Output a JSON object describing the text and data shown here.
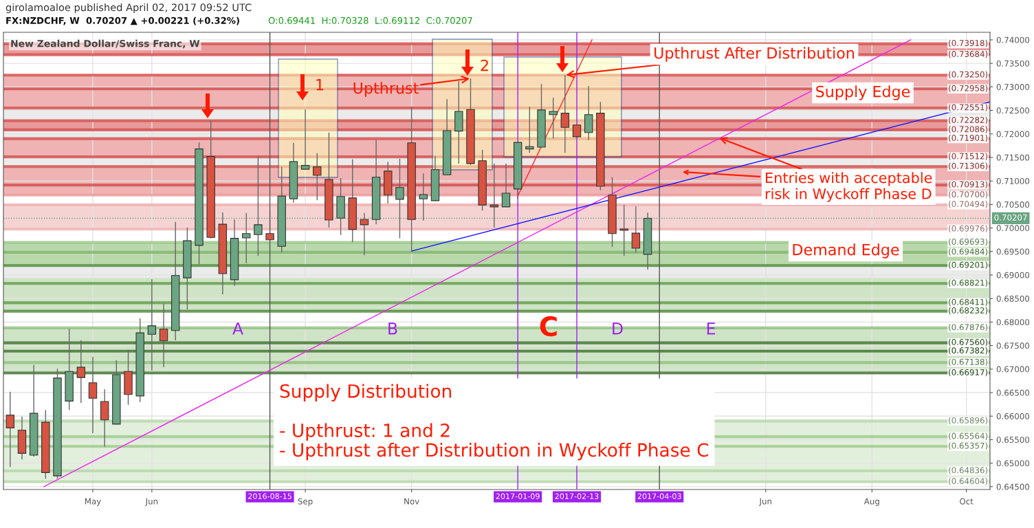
{
  "chart_data": {
    "type": "candlestick",
    "title": "New Zealand Dollar/Swiss Franc, W",
    "x": [
      "2016-03-14",
      "2016-03-21",
      "2016-03-28",
      "2016-04-04",
      "2016-04-11",
      "2016-04-18",
      "2016-04-25",
      "2016-05-02",
      "2016-05-09",
      "2016-05-16",
      "2016-05-23",
      "2016-05-30",
      "2016-06-06",
      "2016-06-13",
      "2016-06-20",
      "2016-06-27",
      "2016-07-04",
      "2016-07-11",
      "2016-07-18",
      "2016-07-25",
      "2016-08-01",
      "2016-08-08",
      "2016-08-15",
      "2016-08-22",
      "2016-08-29",
      "2016-09-05",
      "2016-09-12",
      "2016-09-19",
      "2016-09-26",
      "2016-10-03",
      "2016-10-10",
      "2016-10-17",
      "2016-10-24",
      "2016-10-31",
      "2016-11-07",
      "2016-11-14",
      "2016-11-21",
      "2016-11-28",
      "2016-12-05",
      "2016-12-12",
      "2016-12-19",
      "2016-12-26",
      "2017-01-02",
      "2017-01-09",
      "2017-01-16",
      "2017-01-23",
      "2017-01-30",
      "2017-02-06",
      "2017-02-13",
      "2017-02-20",
      "2017-02-27",
      "2017-03-06",
      "2017-03-13",
      "2017-03-20",
      "2017-03-27"
    ],
    "ohlc": [
      [
        0.6602,
        0.6652,
        0.6492,
        0.6575
      ],
      [
        0.657,
        0.6599,
        0.6508,
        0.6521
      ],
      [
        0.6517,
        0.6709,
        0.6514,
        0.6606
      ],
      [
        0.6587,
        0.6613,
        0.6467,
        0.648
      ],
      [
        0.6473,
        0.6701,
        0.6467,
        0.6681
      ],
      [
        0.6632,
        0.6786,
        0.6613,
        0.6695
      ],
      [
        0.6704,
        0.6761,
        0.6628,
        0.6682
      ],
      [
        0.6671,
        0.6726,
        0.6564,
        0.6638
      ],
      [
        0.6631,
        0.6657,
        0.6535,
        0.6592
      ],
      [
        0.6583,
        0.6719,
        0.6582,
        0.6688
      ],
      [
        0.6695,
        0.6741,
        0.6624,
        0.6646
      ],
      [
        0.6643,
        0.6808,
        0.663,
        0.6777
      ],
      [
        0.6774,
        0.6891,
        0.6697,
        0.6792
      ],
      [
        0.6785,
        0.6839,
        0.6704,
        0.676
      ],
      [
        0.6782,
        0.7013,
        0.6761,
        0.6899
      ],
      [
        0.6894,
        0.7001,
        0.6827,
        0.6973
      ],
      [
        0.6963,
        0.7182,
        0.6923,
        0.7168
      ],
      [
        0.7152,
        0.7228,
        0.6978,
        0.698
      ],
      [
        0.7008,
        0.7033,
        0.6859,
        0.6903
      ],
      [
        0.689,
        0.7018,
        0.6877,
        0.6978
      ],
      [
        0.6979,
        0.7032,
        0.6925,
        0.6988
      ],
      [
        0.6986,
        0.7153,
        0.6941,
        0.7007
      ],
      [
        0.6988,
        0.7036,
        0.6972,
        0.6975
      ],
      [
        0.6961,
        0.713,
        0.6948,
        0.7068
      ],
      [
        0.7062,
        0.7181,
        0.7054,
        0.7141
      ],
      [
        0.7125,
        0.7252,
        0.7124,
        0.7133
      ],
      [
        0.713,
        0.7159,
        0.7059,
        0.7112
      ],
      [
        0.7103,
        0.7203,
        0.7001,
        0.7017
      ],
      [
        0.7021,
        0.7106,
        0.6985,
        0.7067
      ],
      [
        0.7064,
        0.7146,
        0.697,
        0.6997
      ],
      [
        0.7018,
        0.7032,
        0.6942,
        0.7007
      ],
      [
        0.7018,
        0.7187,
        0.7008,
        0.7108
      ],
      [
        0.7121,
        0.7141,
        0.7052,
        0.707
      ],
      [
        0.7061,
        0.7147,
        0.6978,
        0.7086
      ],
      [
        0.7181,
        0.7258,
        0.6951,
        0.7018
      ],
      [
        0.7062,
        0.7116,
        0.7016,
        0.7071
      ],
      [
        0.7058,
        0.7153,
        0.7057,
        0.7124
      ],
      [
        0.7113,
        0.7274,
        0.7112,
        0.7207
      ],
      [
        0.7206,
        0.7312,
        0.7137,
        0.7248
      ],
      [
        0.7252,
        0.7318,
        0.7134,
        0.7137
      ],
      [
        0.7143,
        0.7166,
        0.7037,
        0.7049
      ],
      [
        0.7049,
        0.7137,
        0.7001,
        0.7045
      ],
      [
        0.7045,
        0.7137,
        0.7044,
        0.7074
      ],
      [
        0.7083,
        0.7183,
        0.7062,
        0.7182
      ],
      [
        0.7168,
        0.7258,
        0.716,
        0.7173
      ],
      [
        0.7172,
        0.7306,
        0.7171,
        0.7251
      ],
      [
        0.7241,
        0.7277,
        0.719,
        0.7248
      ],
      [
        0.7244,
        0.7325,
        0.716,
        0.7214
      ],
      [
        0.7219,
        0.722,
        0.7193,
        0.7194
      ],
      [
        0.7203,
        0.7302,
        0.7187,
        0.7241
      ],
      [
        0.7244,
        0.7268,
        0.708,
        0.7089
      ],
      [
        0.707,
        0.7108,
        0.696,
        0.6988
      ],
      [
        0.6998,
        0.7049,
        0.6941,
        0.6995
      ],
      [
        0.6989,
        0.7046,
        0.6947,
        0.6957
      ],
      [
        0.69441,
        0.70328,
        0.69112,
        0.70207
      ]
    ],
    "colors": [
      "#d75442",
      "#d75442",
      "#6ba583",
      "#d75442",
      "#6ba583",
      "#6ba583",
      "#d75442",
      "#d75442",
      "#d75442",
      "#6ba583",
      "#d75442",
      "#6ba583",
      "#6ba583",
      "#d75442",
      "#6ba583",
      "#6ba583",
      "#6ba583",
      "#d75442",
      "#d75442",
      "#6ba583",
      "#6ba583",
      "#6ba583",
      "#d75442",
      "#6ba583",
      "#6ba583",
      "#6ba583",
      "#d75442",
      "#d75442",
      "#6ba583",
      "#d75442",
      "#d75442",
      "#6ba583",
      "#d75442",
      "#6ba583",
      "#d75442",
      "#6ba583",
      "#6ba583",
      "#6ba583",
      "#6ba583",
      "#d75442",
      "#d75442",
      "#d75442",
      "#6ba583",
      "#6ba583",
      "#6ba583",
      "#6ba583",
      "#6ba583",
      "#d75442",
      "#d75442",
      "#6ba583",
      "#d75442",
      "#d75442",
      "#d75442",
      "#d75442",
      "#6ba583"
    ],
    "series": [
      {
        "type": "line",
        "color": "#ee22ee",
        "x": [
          "2016-04-03",
          "2017-08-30"
        ],
        "values": [
          0.645,
          0.74
        ]
      },
      {
        "type": "line",
        "color": "#1a1aff",
        "x": [
          "2016-11-07",
          "2017-10-16"
        ],
        "values": [
          0.6951,
          0.7268
        ]
      },
      {
        "type": "line",
        "color": "#ff2a2a",
        "x": [
          "2017-01-09",
          "2017-02-22"
        ],
        "values": [
          0.7068,
          0.74
        ]
      }
    ],
    "xlim": [
      "2016-03-10",
      "2017-10-16"
    ],
    "xticks": [
      {
        "value": "2016-05-02",
        "label": "May"
      },
      {
        "value": "2016-06-06",
        "label": "Jun"
      },
      {
        "value": "2016-09-05",
        "label": "Sep"
      },
      {
        "value": "2016-11-07",
        "label": "Nov"
      },
      {
        "value": "2017-06-05",
        "label": "Jun"
      },
      {
        "value": "2017-08-07",
        "label": "Aug"
      },
      {
        "value": "2017-10-02",
        "label": "Oct"
      }
    ],
    "ylim": [
      0.6444,
      0.7416
    ],
    "yticks": [
      {
        "value": 0.645,
        "label": "0.64500"
      },
      {
        "value": 0.65,
        "label": "0.65000"
      },
      {
        "value": 0.655,
        "label": "0.65500"
      },
      {
        "value": 0.66,
        "label": "0.66000"
      },
      {
        "value": 0.665,
        "label": "0.66500"
      },
      {
        "value": 0.67,
        "label": "0.67000"
      },
      {
        "value": 0.675,
        "label": "0.67500"
      },
      {
        "value": 0.68,
        "label": "0.68000"
      },
      {
        "value": 0.685,
        "label": "0.68500"
      },
      {
        "value": 0.69,
        "label": "0.69000"
      },
      {
        "value": 0.695,
        "label": "0.69500"
      },
      {
        "value": 0.7,
        "label": "0.70000"
      },
      {
        "value": 0.705,
        "label": "0.70500"
      },
      {
        "value": 0.71,
        "label": "0.71000"
      },
      {
        "value": 0.715,
        "label": "0.71500"
      },
      {
        "value": 0.72,
        "label": "0.72000"
      },
      {
        "value": 0.725,
        "label": "0.72500"
      },
      {
        "value": 0.73,
        "label": "0.73000"
      },
      {
        "value": 0.735,
        "label": "0.73500"
      },
      {
        "value": 0.74,
        "label": "0.74000"
      }
    ],
    "grid": true,
    "bands": [
      {
        "axis": "y",
        "from": 0.7125,
        "to": 0.7262,
        "color": "#ebebeb"
      },
      {
        "axis": "y",
        "from": 0.682,
        "to": 0.6933,
        "color": "#ebebeb"
      },
      {
        "axis": "y",
        "from": 0.73684,
        "to": 0.73918,
        "color": "#e89a9a"
      },
      {
        "axis": "y",
        "from": 0.72551,
        "to": 0.7325,
        "color": "#efb3b3"
      },
      {
        "axis": "y",
        "from": 0.72086,
        "to": 0.72282,
        "color": "#e89a9a"
      },
      {
        "axis": "y",
        "from": 0.71512,
        "to": 0.71901,
        "color": "#efb3b3"
      },
      {
        "axis": "y",
        "from": 0.707,
        "to": 0.71306,
        "color": "#efb3b3"
      },
      {
        "axis": "y",
        "from": 0.69976,
        "to": 0.70494,
        "color": "#f6d3d3"
      },
      {
        "axis": "y",
        "from": 0.69201,
        "to": 0.69693,
        "color": "#b9d8ab"
      },
      {
        "axis": "y",
        "from": 0.68232,
        "to": 0.68933,
        "color": "#cfe4c6"
      },
      {
        "axis": "y",
        "from": 0.66917,
        "to": 0.67876,
        "color": "#cfe4c6"
      },
      {
        "axis": "y",
        "from": 0.64604,
        "to": 0.65896,
        "color": "#e2efdc"
      }
    ],
    "ref_lines": [
      {
        "axis": "x",
        "value": "2016-08-15",
        "label": "2016-08-15",
        "color": "#555555"
      },
      {
        "axis": "x",
        "value": "2017-01-09",
        "label": "2017-01-09",
        "color": "#a020f0"
      },
      {
        "axis": "x",
        "value": "2017-02-13",
        "label": "2017-02-13",
        "color": "#a020f0"
      },
      {
        "axis": "x",
        "value": "2017-04-03",
        "label": "2017-04-03",
        "color": "#555555"
      },
      {
        "axis": "y",
        "value": 0.70207,
        "label": "0.70207",
        "color": "#6ba583",
        "line_style": "dotted"
      },
      {
        "axis": "y",
        "value": 0.73918,
        "label": "(0.73918)",
        "color": "#d44c4c",
        "line_style": "solid"
      },
      {
        "axis": "y",
        "value": 0.73684,
        "label": "(0.73684)",
        "color": "#d44c4c",
        "line_style": "solid"
      },
      {
        "axis": "y",
        "value": 0.7325,
        "label": "(0.73250)",
        "color": "#d44c4c",
        "line_style": "solid"
      },
      {
        "axis": "y",
        "value": 0.72958,
        "label": "(0.72958)",
        "color": "#d44c4c",
        "line_style": "solid"
      },
      {
        "axis": "y",
        "value": 0.72551,
        "label": "(0.72551)",
        "color": "#d44c4c",
        "line_style": "solid"
      },
      {
        "axis": "y",
        "value": 0.72282,
        "label": "(0.72282)",
        "color": "#d44c4c",
        "line_style": "solid"
      },
      {
        "axis": "y",
        "value": 0.72086,
        "label": "(0.72086)",
        "color": "#d44c4c",
        "line_style": "solid"
      },
      {
        "axis": "y",
        "value": 0.71901,
        "label": "(0.71901)",
        "color": "#d44c4c",
        "line_style": "solid"
      },
      {
        "axis": "y",
        "value": 0.71512,
        "label": "(0.71512)",
        "color": "#d44c4c",
        "line_style": "solid"
      },
      {
        "axis": "y",
        "value": 0.71306,
        "label": "(0.71306)",
        "color": "#d44c4c",
        "line_style": "solid"
      },
      {
        "axis": "y",
        "value": 0.70913,
        "label": "(0.70913)",
        "color": "#d44c4c",
        "line_style": "solid"
      },
      {
        "axis": "y",
        "value": 0.707,
        "label": "(0.70700)",
        "color": "#ee9a9a",
        "line_style": "solid"
      },
      {
        "axis": "y",
        "value": 0.70494,
        "label": "(0.70494)",
        "color": "#f0b0b0",
        "line_style": "solid"
      },
      {
        "axis": "y",
        "value": 0.69976,
        "label": "(0.69976)",
        "color": "#f0b0b0",
        "line_style": "solid"
      },
      {
        "axis": "y",
        "value": 0.69693,
        "label": "(0.69693)",
        "color": "#9cc98a",
        "line_style": "solid"
      },
      {
        "axis": "y",
        "value": 0.69484,
        "label": "(0.69484)",
        "color": "#7fb36b",
        "line_style": "solid"
      },
      {
        "axis": "y",
        "value": 0.69201,
        "label": "(0.69201)",
        "color": "#4f8a3a",
        "line_style": "solid"
      },
      {
        "axis": "y",
        "value": 0.68821,
        "label": "(0.68821)",
        "color": "#5f9a48",
        "line_style": "solid"
      },
      {
        "axis": "y",
        "value": 0.68411,
        "label": "(0.68411)",
        "color": "#5f9a48",
        "line_style": "solid"
      },
      {
        "axis": "y",
        "value": 0.68232,
        "label": "(0.68232)",
        "color": "#4f8a3a",
        "line_style": "solid"
      },
      {
        "axis": "y",
        "value": 0.67876,
        "label": "(0.67876)",
        "color": "#8fbf7d",
        "line_style": "solid"
      },
      {
        "axis": "y",
        "value": 0.6756,
        "label": "(0.67560)",
        "color": "#3f6f2f",
        "line_style": "solid"
      },
      {
        "axis": "y",
        "value": 0.67382,
        "label": "(0.67382)",
        "color": "#3f6f2f",
        "line_style": "solid"
      },
      {
        "axis": "y",
        "value": 0.67138,
        "label": "(0.67138)",
        "color": "#8fbf7d",
        "line_style": "solid"
      },
      {
        "axis": "y",
        "value": 0.66917,
        "label": "(0.66917)",
        "color": "#3f6f2f",
        "line_style": "solid"
      },
      {
        "axis": "y",
        "value": 0.65896,
        "label": "(0.65896)",
        "color": "#b5d6a8",
        "line_style": "solid"
      },
      {
        "axis": "y",
        "value": 0.65564,
        "label": "(0.65564)",
        "color": "#9cc98a",
        "line_style": "solid"
      },
      {
        "axis": "y",
        "value": 0.65357,
        "label": "(0.65357)",
        "color": "#9cc98a",
        "line_style": "solid"
      },
      {
        "axis": "y",
        "value": 0.64836,
        "label": "(0.64836)",
        "color": "#b5d6a8",
        "line_style": "solid"
      },
      {
        "axis": "y",
        "value": 0.64604,
        "label": "(0.64604)",
        "color": "#b5d6a8",
        "line_style": "solid"
      }
    ],
    "annotations": [
      "girolamoaloe published April 02, 2017 09:52 UTC",
      "FX:NZDCHF, W  0.70207 ▲ +0.00221 (+0.32%)",
      "O:0.69441  H:0.70328  L:0.69112  C:0.70207",
      {
        "text": "Upthrust",
        "x": "2016-12-12",
        "y": 0.7318
      },
      "1",
      "2",
      {
        "text": "Upthrust After Distribution",
        "x": "2017-02-06",
        "y": 0.7325
      },
      "Supply Edge",
      {
        "text": "Entries with acceptable\nrisk in Wyckoff Phase D",
        "x": "2017-05-08",
        "y": 0.7192
      },
      "Demand Edge",
      "A",
      "B",
      "C",
      "D",
      "E",
      "Supply Distribution\n\n- Upthrust: 1 and 2\n- Upthrust after Distribution in Wyckoff Phase C"
    ]
  }
}
